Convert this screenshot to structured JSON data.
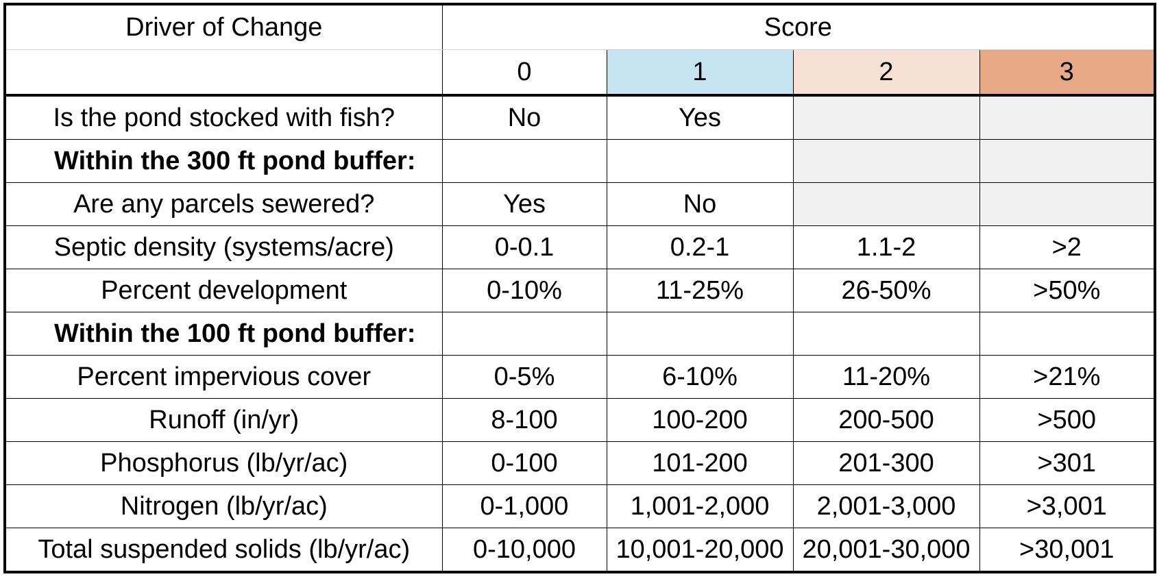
{
  "table": {
    "header": {
      "driver_label": "Driver of Change",
      "score_label": "Score",
      "score_levels": [
        "0",
        "1",
        "2",
        "3"
      ],
      "level_colors": {
        "1": "#c6e4f1",
        "2": "#f7e0d4",
        "3": "#e8a987"
      }
    },
    "rows": [
      {
        "label": "Is the pond stocked with fish?",
        "values": [
          "No",
          "Yes",
          "",
          ""
        ],
        "type": "item"
      },
      {
        "label": "Within the 300 ft pond buffer:",
        "values": [
          "",
          "",
          "",
          ""
        ],
        "type": "section"
      },
      {
        "label": "Are any parcels sewered?",
        "values": [
          "Yes",
          "No",
          "",
          ""
        ],
        "type": "item"
      },
      {
        "label": "Septic density (systems/acre)",
        "values": [
          "0-0.1",
          "0.2-1",
          "1.1-2",
          ">2"
        ],
        "type": "item"
      },
      {
        "label": "Percent development",
        "values": [
          "0-10%",
          "11-25%",
          "26-50%",
          ">50%"
        ],
        "type": "item"
      },
      {
        "label": "Within the 100 ft pond buffer:",
        "values": [
          "",
          "",
          "",
          ""
        ],
        "type": "section"
      },
      {
        "label": "Percent impervious cover",
        "values": [
          "0-5%",
          "6-10%",
          "11-20%",
          ">21%"
        ],
        "type": "item"
      },
      {
        "label": "Runoff (in/yr)",
        "values": [
          "8-100",
          "100-200",
          "200-500",
          ">500"
        ],
        "type": "item"
      },
      {
        "label": "Phosphorus (lb/yr/ac)",
        "values": [
          "0-100",
          "101-200",
          "201-300",
          ">301"
        ],
        "type": "item"
      },
      {
        "label": "Nitrogen (lb/yr/ac)",
        "values": [
          "0-1,000",
          "1,001-2,000",
          "2,001-3,000",
          ">3,001"
        ],
        "type": "item"
      },
      {
        "label": "Total suspended solids (lb/yr/ac)",
        "values": [
          "0-10,000",
          "10,001-20,000",
          "20,001-30,000",
          ">30,001"
        ],
        "type": "item"
      }
    ]
  }
}
